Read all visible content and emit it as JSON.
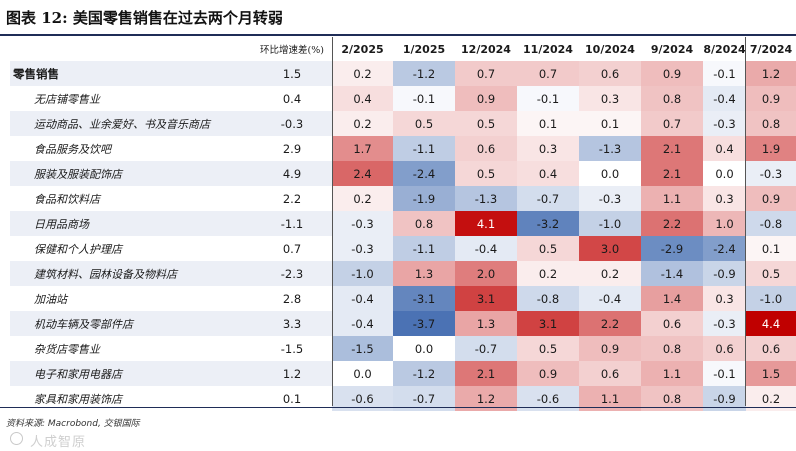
{
  "title": "图表 12: 美国零售销售在过去两个月转弱",
  "table": {
    "yoy_header": "环比增速差(%)",
    "months": [
      "2/2025",
      "1/2025",
      "12/2024",
      "11/2024",
      "10/2024",
      "9/2024",
      "8/2024",
      "7/2024"
    ],
    "rows": [
      {
        "label": "零售销售",
        "yoy": "1.5",
        "values": [
          "0.2",
          "-1.2",
          "0.7",
          "0.7",
          "0.6",
          "0.9",
          "-0.1",
          "1.2"
        ],
        "top": true
      },
      {
        "label": "无店铺零售业",
        "yoy": "0.4",
        "values": [
          "0.4",
          "-0.1",
          "0.9",
          "-0.1",
          "0.3",
          "0.8",
          "-0.4",
          "0.9"
        ]
      },
      {
        "label": "运动商品、业余爱好、书及音乐商店",
        "yoy": "-0.3",
        "values": [
          "0.2",
          "0.5",
          "0.5",
          "0.1",
          "0.1",
          "0.7",
          "-0.3",
          "0.8"
        ]
      },
      {
        "label": "食品服务及饮吧",
        "yoy": "2.9",
        "values": [
          "1.7",
          "-1.1",
          "0.6",
          "0.3",
          "-1.3",
          "2.1",
          "0.4",
          "1.9"
        ]
      },
      {
        "label": "服装及服装配饰店",
        "yoy": "4.9",
        "values": [
          "2.4",
          "-2.4",
          "0.5",
          "0.4",
          "0.0",
          "2.1",
          "0.0",
          "-0.3"
        ]
      },
      {
        "label": "食品和饮料店",
        "yoy": "2.2",
        "values": [
          "0.2",
          "-1.9",
          "-1.3",
          "-0.7",
          "-0.3",
          "1.1",
          "0.3",
          "0.9"
        ]
      },
      {
        "label": "日用品商场",
        "yoy": "-1.1",
        "values": [
          "-0.3",
          "0.8",
          "4.1",
          "-3.2",
          "-1.0",
          "2.2",
          "1.0",
          "-0.8"
        ]
      },
      {
        "label": "保健和个人护理店",
        "yoy": "0.7",
        "values": [
          "-0.3",
          "-1.1",
          "-0.4",
          "0.5",
          "3.0",
          "-2.9",
          "-2.4",
          "0.1"
        ]
      },
      {
        "label": "建筑材料、园林设备及物料店",
        "yoy": "-2.3",
        "values": [
          "-1.0",
          "1.3",
          "2.0",
          "0.2",
          "0.2",
          "-1.4",
          "-0.9",
          "0.5"
        ]
      },
      {
        "label": "加油站",
        "yoy": "2.8",
        "values": [
          "-0.4",
          "-3.1",
          "3.1",
          "-0.8",
          "-0.4",
          "1.4",
          "0.3",
          "-1.0"
        ]
      },
      {
        "label": "机动车辆及零部件店",
        "yoy": "3.3",
        "values": [
          "-0.4",
          "-3.7",
          "1.3",
          "3.1",
          "2.2",
          "0.6",
          "-0.3",
          "4.4"
        ]
      },
      {
        "label": "杂货店零售业",
        "yoy": "-1.5",
        "values": [
          "-1.5",
          "0.0",
          "-0.7",
          "0.5",
          "0.9",
          "0.8",
          "0.6",
          "0.6"
        ]
      },
      {
        "label": "电子和家用电器店",
        "yoy": "1.2",
        "values": [
          "0.0",
          "-1.2",
          "2.1",
          "0.9",
          "0.6",
          "1.1",
          "-0.1",
          "1.5"
        ]
      },
      {
        "label": "家具和家用装饰店",
        "yoy": "0.1",
        "values": [
          "-0.6",
          "-0.7",
          "1.2",
          "-0.6",
          "1.1",
          "0.8",
          "-0.9",
          "0.2"
        ]
      }
    ]
  },
  "colors": {
    "positive": "#c00000",
    "negative": "#2e5ca8",
    "neutral": "#ffffff",
    "stripe": "#eceff6"
  },
  "source": "资料来源: Macrobond, 交银国际",
  "watermark": "人成智原"
}
